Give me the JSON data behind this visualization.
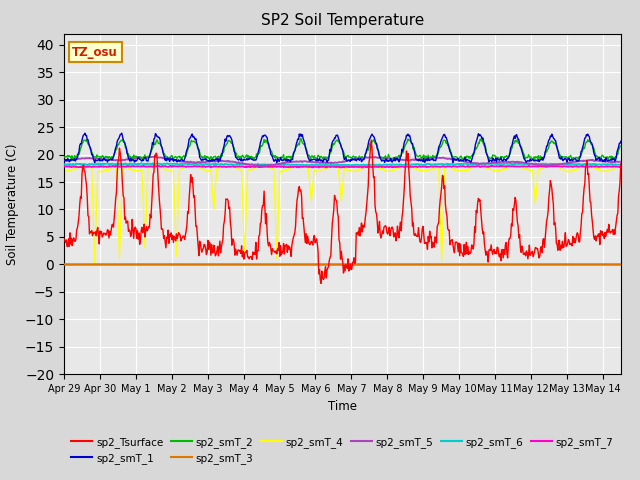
{
  "title": "SP2 Soil Temperature",
  "xlabel": "Time",
  "ylabel": "Soil Temperature (C)",
  "ylim": [
    -20,
    42
  ],
  "yticks": [
    -20,
    -15,
    -10,
    -5,
    0,
    5,
    10,
    15,
    20,
    25,
    30,
    35,
    40
  ],
  "bg_color": "#d8d8d8",
  "plot_bg_color": "#e8e8e8",
  "tz_label": "TZ_osu",
  "series_colors": {
    "sp2_Tsurface": "#ff0000",
    "sp2_smT_1": "#0000cc",
    "sp2_smT_2": "#00bb00",
    "sp2_smT_3": "#dd7700",
    "sp2_smT_4": "#ffff00",
    "sp2_smT_5": "#aa44bb",
    "sp2_smT_6": "#00cccc",
    "sp2_smT_7": "#ff00cc"
  },
  "tick_labels": [
    "Apr 29",
    "Apr 30",
    "May 1",
    "May 2",
    "May 3",
    "May 4",
    "May 5",
    "May 6",
    "May 7",
    "May 8",
    "May 9",
    "May 10",
    "May 11",
    "May 12",
    "May 13",
    "May 14"
  ],
  "tick_positions": [
    0,
    1,
    2,
    3,
    4,
    5,
    6,
    7,
    8,
    9,
    10,
    11,
    12,
    13,
    14,
    15
  ],
  "legend_order": [
    "sp2_Tsurface",
    "sp2_smT_1",
    "sp2_smT_2",
    "sp2_smT_3",
    "sp2_smT_4",
    "sp2_smT_5",
    "sp2_smT_6",
    "sp2_smT_7"
  ]
}
